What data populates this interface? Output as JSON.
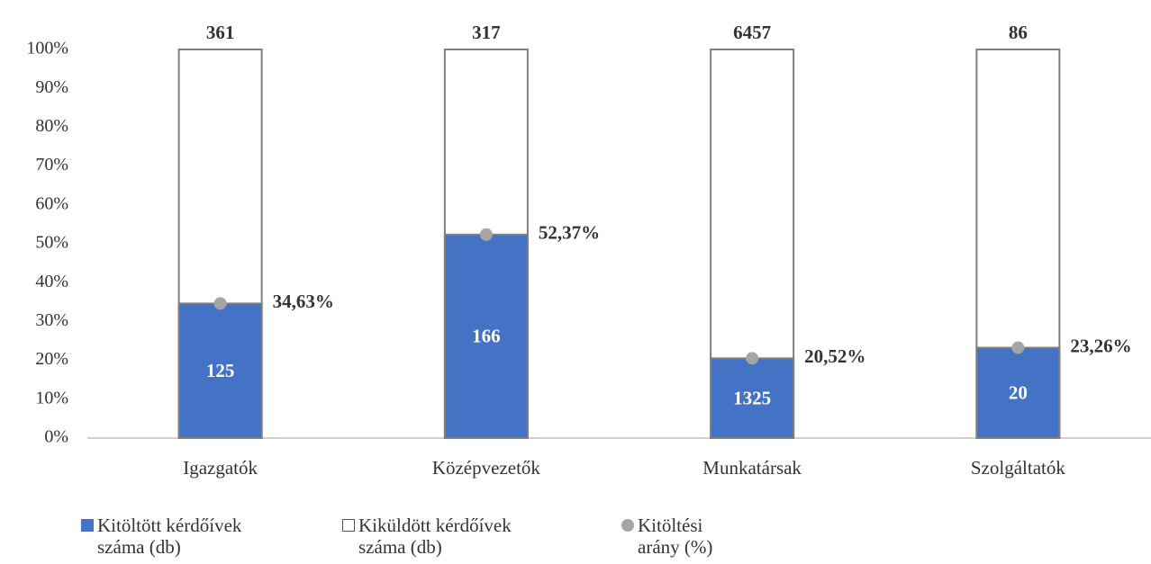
{
  "chart_data": {
    "type": "bar",
    "stacking": "percent",
    "categories": [
      "Igazgatók",
      "Középvezetők",
      "Munkatársak",
      "Szolgáltatók"
    ],
    "series": [
      {
        "name": "Kitöltött kérdőívek száma (db)",
        "color": "#4472c4",
        "values": [
          125,
          166,
          1325,
          20
        ]
      },
      {
        "name": "Kiküldött kérdőívek száma (db)",
        "color": "#ffffff",
        "values": [
          361,
          317,
          6457,
          86
        ]
      },
      {
        "name": "Kitöltési arány (%)",
        "color": "#a5a5a5",
        "values": [
          34.63,
          52.37,
          20.52,
          23.26
        ],
        "value_labels": [
          "34,63%",
          "52,37%",
          "20,52%",
          "23,26%"
        ]
      }
    ],
    "ylim": [
      0,
      100
    ],
    "yticks": [
      {
        "value": 0,
        "label": "0%"
      },
      {
        "value": 10,
        "label": "10%"
      },
      {
        "value": 20,
        "label": "20%"
      },
      {
        "value": 30,
        "label": "30%"
      },
      {
        "value": 40,
        "label": "40%"
      },
      {
        "value": 50,
        "label": "50%"
      },
      {
        "value": 60,
        "label": "60%"
      },
      {
        "value": 70,
        "label": "70%"
      },
      {
        "value": 80,
        "label": "80%"
      },
      {
        "value": 90,
        "label": "90%"
      },
      {
        "value": 100,
        "label": "100%"
      }
    ],
    "legend": "bottom"
  }
}
